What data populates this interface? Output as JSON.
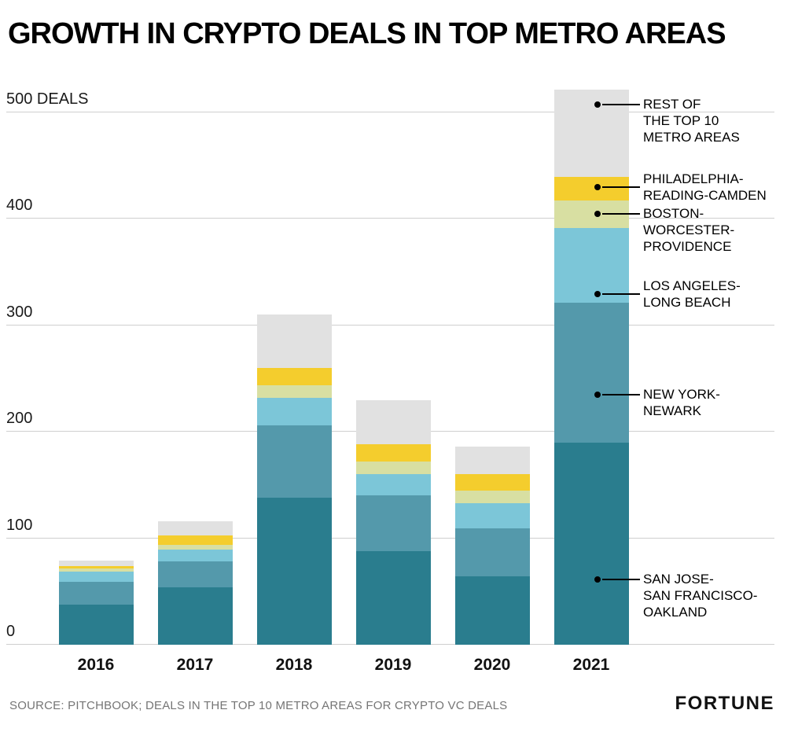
{
  "title": "GROWTH IN CRYPTO DEALS IN TOP METRO AREAS",
  "footer": {
    "source": "SOURCE: PITCHBOOK; DEALS IN THE TOP 10 METRO AREAS FOR CRYPTO VC DEALS",
    "brand": "FORTUNE"
  },
  "chart_data": {
    "type": "bar",
    "stacked": true,
    "title": "GROWTH IN CRYPTO DEALS IN TOP METRO AREAS",
    "xlabel": "",
    "ylabel": "DEALS",
    "grid": true,
    "ylim": [
      0,
      525
    ],
    "categories": [
      "2016",
      "2017",
      "2018",
      "2019",
      "2020",
      "2021"
    ],
    "series": [
      {
        "name": "SAN JOSE-SAN FRANCISCO-OAKLAND",
        "color": "#2a7d8e",
        "values": [
          38,
          54,
          138,
          88,
          64,
          190
        ]
      },
      {
        "name": "NEW YORK-NEWARK",
        "color": "#5499ab",
        "values": [
          21,
          24,
          68,
          52,
          45,
          131
        ]
      },
      {
        "name": "LOS ANGELES-LONG BEACH",
        "color": "#7cc6d8",
        "values": [
          10,
          11,
          26,
          20,
          24,
          70
        ]
      },
      {
        "name": "BOSTON-WORCESTER-PROVIDENCE",
        "color": "#d8dfa2",
        "values": [
          3,
          5,
          12,
          12,
          12,
          26
        ]
      },
      {
        "name": "PHILADELPHIA-READING-CAMDEN",
        "color": "#f4cd2d",
        "values": [
          2,
          9,
          16,
          16,
          15,
          22
        ]
      },
      {
        "name": "REST OF THE TOP 10 METRO AREAS",
        "color": "#e1e1e1",
        "values": [
          5,
          13,
          50,
          42,
          26,
          82
        ]
      }
    ],
    "y_ticks": [
      {
        "value": 0,
        "label": "0"
      },
      {
        "value": 100,
        "label": "100"
      },
      {
        "value": 200,
        "label": "200"
      },
      {
        "value": 300,
        "label": "300"
      },
      {
        "value": 400,
        "label": "400"
      },
      {
        "value": 500,
        "label": "500 DEALS"
      }
    ],
    "annotations": [
      {
        "lines": [
          "REST OF",
          "THE TOP 10",
          "METRO AREAS"
        ],
        "value": 507,
        "align": "first"
      },
      {
        "lines": [
          "PHILADELPHIA-",
          "READING-CAMDEN"
        ],
        "value": 430,
        "align": "center"
      },
      {
        "lines": [
          "BOSTON-",
          "WORCESTER-",
          "PROVIDENCE"
        ],
        "value": 405,
        "align": "first"
      },
      {
        "lines": [
          "LOS ANGELES-",
          "LONG BEACH"
        ],
        "value": 329,
        "align": "center"
      },
      {
        "lines": [
          "NEW YORK-",
          "NEWARK"
        ],
        "value": 235,
        "align": "first"
      },
      {
        "lines": [
          "SAN JOSE-",
          "SAN FRANCISCO-",
          "OAKLAND"
        ],
        "value": 61,
        "align": "first"
      }
    ]
  }
}
